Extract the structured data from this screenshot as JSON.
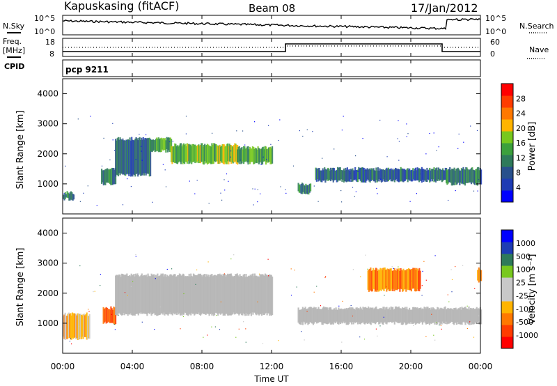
{
  "header": {
    "station": "Kapuskasing (fitACF)",
    "beam": "Beam 08",
    "date": "17/Jan/2012",
    "cpid": "pcp 9211"
  },
  "noise_panel": {
    "left_label": "N.Sky",
    "right_label": "N.Search",
    "left_ticks": [
      "10^5",
      "10^0"
    ],
    "right_ticks": [
      "10^5",
      "10^0"
    ]
  },
  "freq_panel": {
    "left_label_1": "Freq.",
    "left_label_2": "[MHz]",
    "cpid_label": "CPID",
    "right_label": "Nave",
    "left_ticks": [
      "18",
      "8"
    ],
    "right_ticks": [
      "60",
      "0"
    ]
  },
  "colors": {
    "power": [
      "#0000ff",
      "#1e3cb4",
      "#28508c",
      "#2e7a5a",
      "#3ca03c",
      "#78c81e",
      "#ffb400",
      "#ff7800",
      "#ff3c00",
      "#ff0000"
    ],
    "velocity": [
      "#ff0000",
      "#ff3c00",
      "#ff7800",
      "#ffb400",
      "#c8c8c8",
      "#c8c8c8",
      "#78c81e",
      "#2e7a5a",
      "#1e3cb4",
      "#0000ff"
    ],
    "ground_scatter": "#b4b4b4"
  },
  "chart_data": [
    {
      "type": "heatmap",
      "title": "Power",
      "ylabel": "Slant Range [km]",
      "xlabel": "",
      "ylim": [
        0,
        4500
      ],
      "xlim": [
        0,
        24
      ],
      "yticks": [
        "1000",
        "2000",
        "3000",
        "4000"
      ],
      "colorbar_label": "Power [dB]",
      "colorbar_ticks": [
        "4",
        "8",
        "12",
        "16",
        "20",
        "24",
        "28"
      ],
      "bands": [
        {
          "t_start": 0.0,
          "t_end": 0.6,
          "range_low": 500,
          "range_high": 700,
          "level": 0.3
        },
        {
          "t_start": 2.2,
          "t_end": 3.0,
          "range_low": 1000,
          "range_high": 1500,
          "level": 0.4
        },
        {
          "t_start": 3.0,
          "t_end": 5.0,
          "range_low": 1300,
          "range_high": 2500,
          "level": 0.2
        },
        {
          "t_start": 5.0,
          "t_end": 6.2,
          "range_low": 2100,
          "range_high": 2500,
          "level": 0.5
        },
        {
          "t_start": 6.2,
          "t_end": 10.0,
          "range_low": 1700,
          "range_high": 2300,
          "level": 0.6
        },
        {
          "t_start": 10.0,
          "t_end": 12.0,
          "range_low": 1700,
          "range_high": 2200,
          "level": 0.5
        },
        {
          "t_start": 13.5,
          "t_end": 14.2,
          "range_low": 700,
          "range_high": 1000,
          "level": 0.3
        },
        {
          "t_start": 14.5,
          "t_end": 22.0,
          "range_low": 1100,
          "range_high": 1500,
          "level": 0.2
        },
        {
          "t_start": 22.0,
          "t_end": 24.0,
          "range_low": 1000,
          "range_high": 1500,
          "level": 0.3
        }
      ]
    },
    {
      "type": "heatmap",
      "title": "Velocity",
      "ylabel": "Slant Range [km]",
      "xlabel": "Time UT",
      "ylim": [
        0,
        4500
      ],
      "xlim": [
        0,
        24
      ],
      "yticks": [
        "1000",
        "2000",
        "3000",
        "4000"
      ],
      "xticks": [
        "00:00",
        "04:00",
        "08:00",
        "12:00",
        "16:00",
        "20:00",
        "00:00"
      ],
      "colorbar_label": "Velocity [m s⁻¹]",
      "colorbar_ticks": [
        "1000",
        "500",
        "100",
        "25",
        "-25",
        "-100",
        "-500",
        "-1000"
      ],
      "bands": [
        {
          "t_start": 0.0,
          "t_end": 1.5,
          "range_low": 500,
          "range_high": 1300,
          "level": 0.25
        },
        {
          "t_start": 2.3,
          "t_end": 3.0,
          "range_low": 1000,
          "range_high": 1500,
          "level": 0.1
        },
        {
          "t_start": 3.0,
          "t_end": 12.0,
          "range_low": 1300,
          "range_high": 2600,
          "level": 0.5
        },
        {
          "t_start": 13.5,
          "t_end": 24.0,
          "range_low": 1000,
          "range_high": 1500,
          "level": 0.5
        },
        {
          "t_start": 17.5,
          "t_end": 20.5,
          "range_low": 2100,
          "range_high": 2800,
          "level": 0.15
        },
        {
          "t_start": 23.8,
          "t_end": 24.0,
          "range_low": 2400,
          "range_high": 2800,
          "level": 0.2
        }
      ]
    }
  ]
}
